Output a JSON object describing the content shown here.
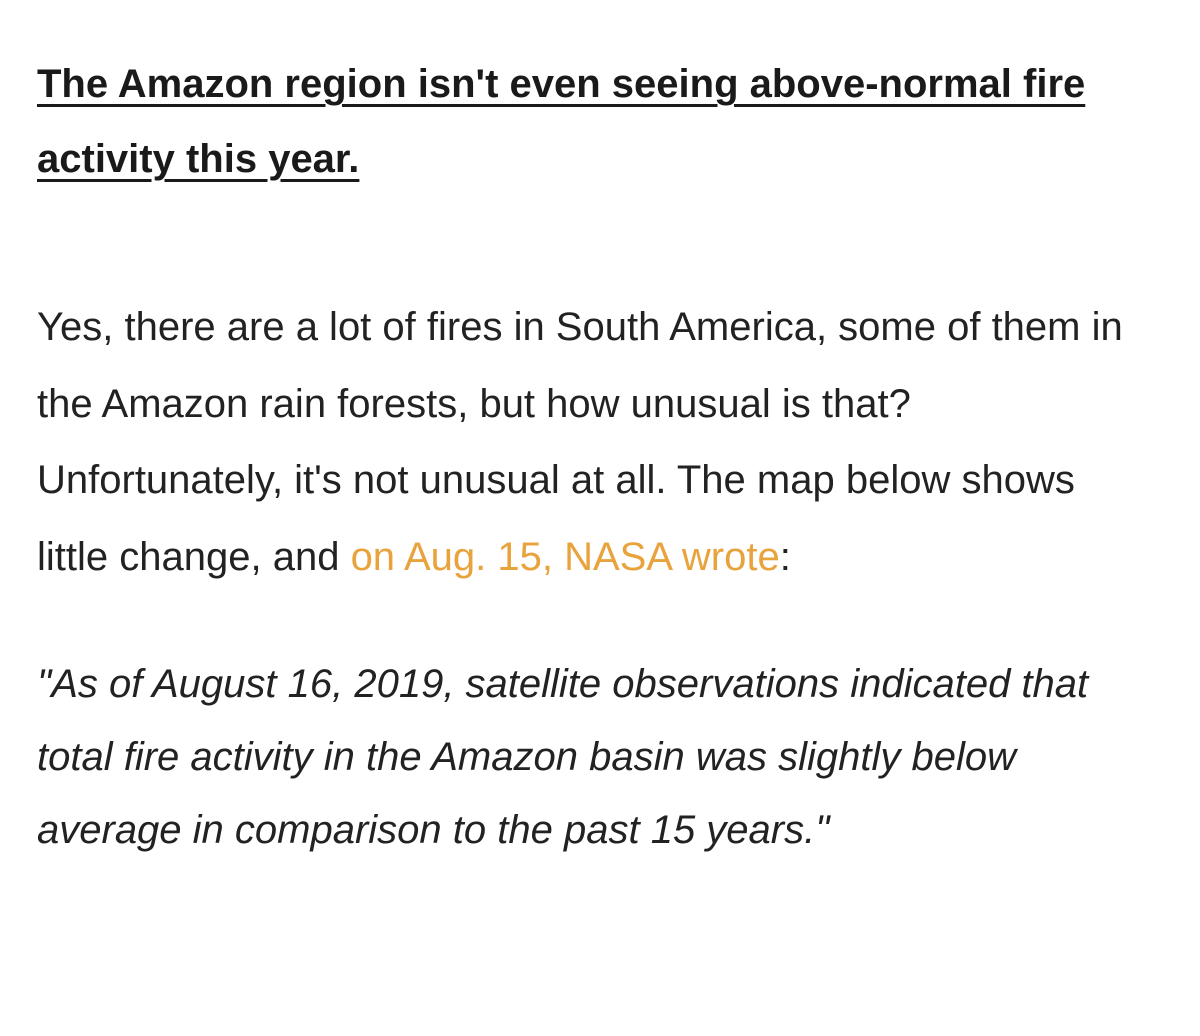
{
  "heading": "The Amazon region isn't even seeing above-normal fire activity this year.",
  "paragraph": {
    "text_before_link": "Yes, there are a lot of fires in South America, some of them in the Amazon rain forests, but how unusual is that? Unfortunately, it's not unusual at all. The map below shows little change, and ",
    "link_text": "on Aug. 15, NASA wrote",
    "text_after_link": ":"
  },
  "quote": "\"As of August 16, 2019, satellite observations indicated that total fire activity in the Amazon basin was slightly below average in comparison to the past 15 years.\"",
  "colors": {
    "link": "#e8a33c",
    "text": "#222222",
    "background": "#ffffff"
  }
}
